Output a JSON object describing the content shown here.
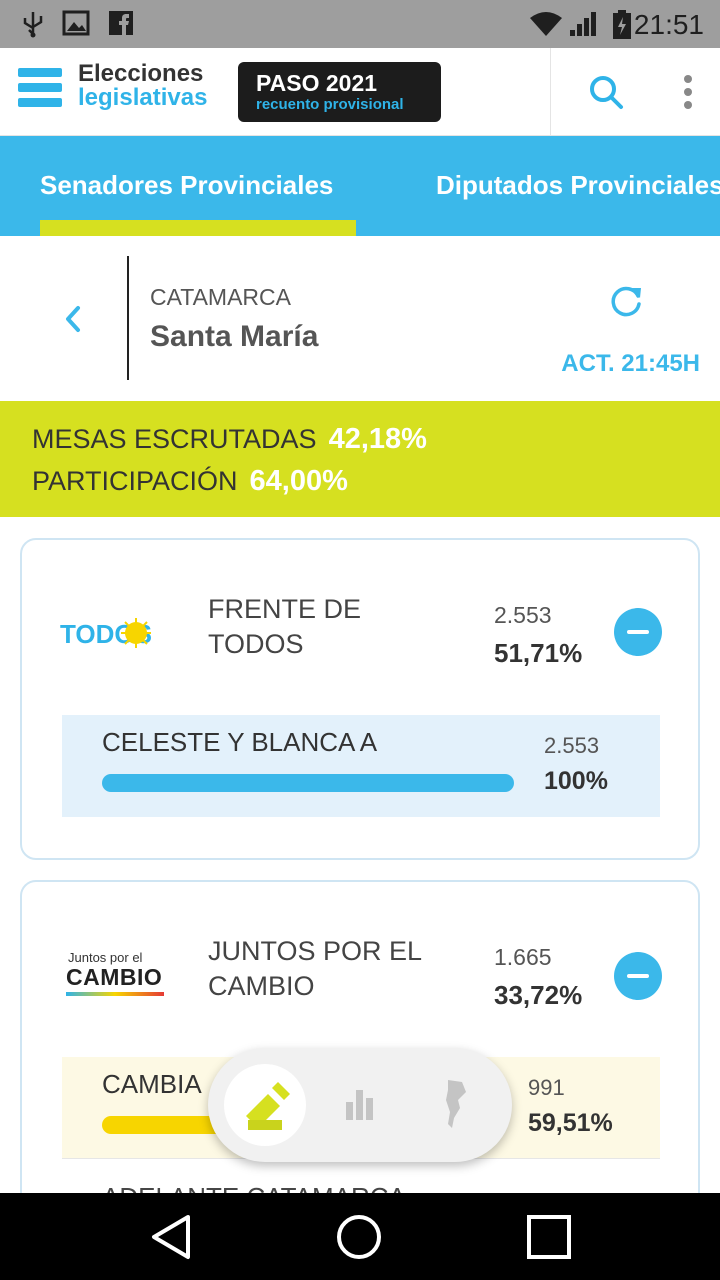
{
  "status_bar": {
    "time": "21:51",
    "icons": [
      "usb-icon",
      "image-icon",
      "facebook-icon",
      "wifi-icon",
      "signal-icon",
      "battery-icon"
    ]
  },
  "header": {
    "logo_line1": "Elecciones",
    "logo_line2": "legislativas",
    "badge_title": "PASO 2021",
    "badge_subtitle": "recuento provisional"
  },
  "tabs": [
    {
      "label": "Senadores Provinciales",
      "active": true
    },
    {
      "label": "Diputados Provinciales",
      "active": false
    }
  ],
  "location": {
    "province": "CATAMARCA",
    "locality": "Santa María",
    "updated": "ACT. 21:45H"
  },
  "stats": {
    "mesas_label": "MESAS ESCRUTADAS",
    "mesas_value": "42,18%",
    "participacion_label": "PARTICIPACIÓN",
    "participacion_value": "64,00%"
  },
  "parties": [
    {
      "logo_text": "TODOS",
      "name_line1": "FRENTE DE",
      "name_line2": "TODOS",
      "votes": "2.553",
      "pct": "51,71%",
      "lists": [
        {
          "name": "CELESTE Y BLANCA A",
          "votes": "2.553",
          "pct": "100%",
          "fraction": 1.0
        }
      ]
    },
    {
      "logo_line1": "Juntos por el",
      "logo_line2": "CAMBIO",
      "name_line1": "JUNTOS POR EL",
      "name_line2": "CAMBIO",
      "votes": "1.665",
      "pct": "33,72%",
      "lists": [
        {
          "name": "CAMBIA",
          "votes": "991",
          "pct": "59,51%",
          "fraction": 0.5951
        },
        {
          "name": "ADELANTE CATAMARCA"
        }
      ]
    }
  ],
  "colors": {
    "accent": "#3bb8ea",
    "highlight": "#d6e020",
    "list_bg_1": "#e3f1fb",
    "list_bg_2": "#fdf9e4",
    "bar_1": "#3bb8ea",
    "bar_2": "#f7d500"
  },
  "floating_nav": [
    "ballot-icon",
    "bar-chart-icon",
    "argentina-map-icon"
  ]
}
